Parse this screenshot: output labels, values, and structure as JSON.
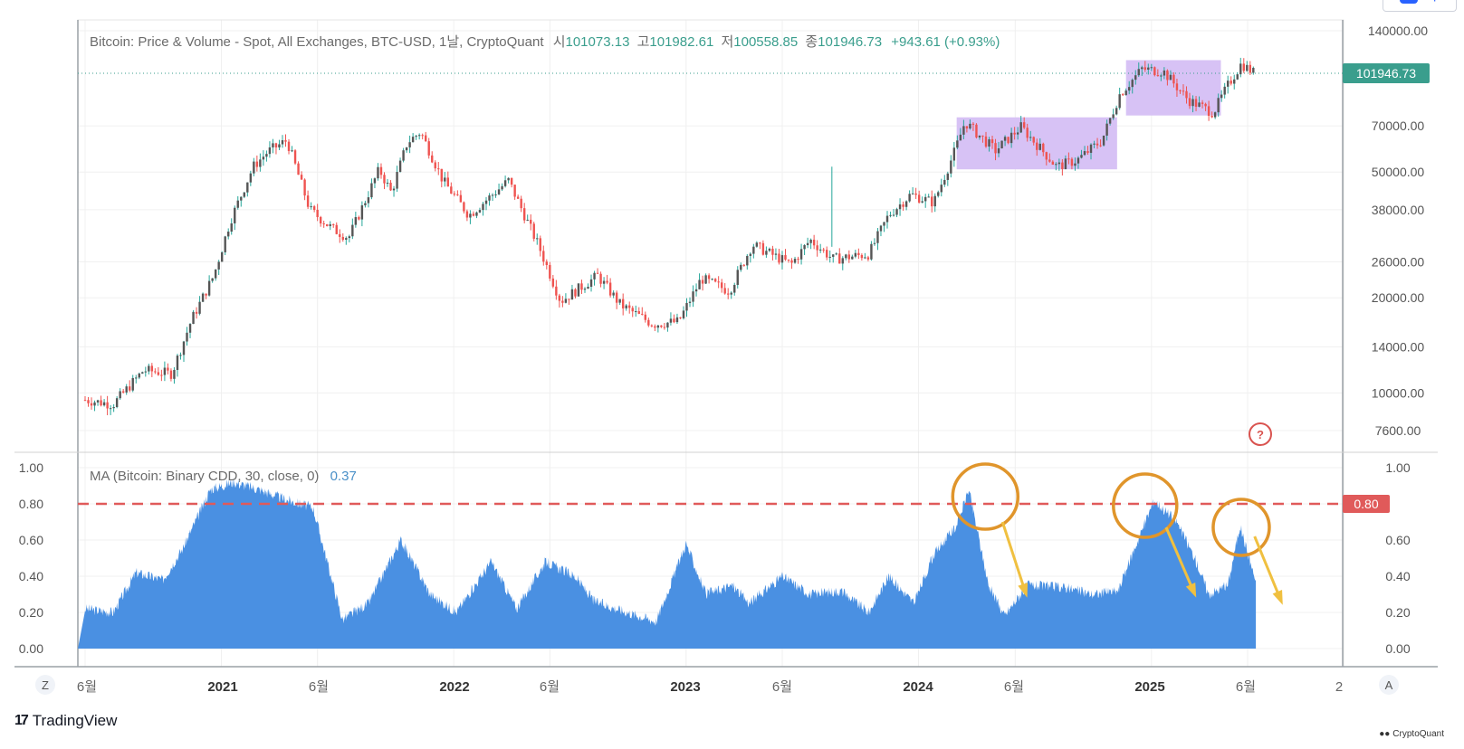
{
  "header": {
    "title": "Bitcoin: Price & Volume - Spot, All Exchanges, BTC-USD, 1날, CryptoQuant",
    "open_label": "시",
    "open_value": "101073.13",
    "high_label": "고",
    "high_value": "101982.61",
    "low_label": "저",
    "low_value": "100558.85",
    "close_label": "종",
    "close_value": "101946.73",
    "change": "+943.61 (+0.93%)"
  },
  "indicator": {
    "title": "MA (Bitcoin: Binary CDD, 30, close, 0)",
    "value": "0.37"
  },
  "price_axis": {
    "ticks": [
      "140000.00",
      "70000.00",
      "50000.00",
      "38000.00",
      "26000.00",
      "20000.00",
      "14000.00",
      "10000.00",
      "7600.00"
    ],
    "last_price_label": "101946.73"
  },
  "cdd_axis": {
    "left_ticks": [
      "1.00",
      "0.80",
      "0.60",
      "0.40",
      "0.20",
      "0.00"
    ],
    "right_ticks": [
      "1.00",
      "0.60",
      "0.40",
      "0.20",
      "0.00"
    ],
    "threshold_label": "0.80"
  },
  "time_axis": {
    "ticks": [
      {
        "label": "6월",
        "bold": false
      },
      {
        "label": "2021",
        "bold": true
      },
      {
        "label": "6월",
        "bold": false
      },
      {
        "label": "2022",
        "bold": true
      },
      {
        "label": "6월",
        "bold": false
      },
      {
        "label": "2023",
        "bold": true
      },
      {
        "label": "6월",
        "bold": false
      },
      {
        "label": "2024",
        "bold": true
      },
      {
        "label": "6월",
        "bold": false
      },
      {
        "label": "2025",
        "bold": true
      },
      {
        "label": "6월",
        "bold": false
      },
      {
        "label": "2",
        "bold": false
      }
    ],
    "left_button": "Z",
    "right_button": "A"
  },
  "help_icon": "?",
  "branding": {
    "tradingview": "TradingView",
    "cryptoquant": "CryptoQuant"
  },
  "colors": {
    "price_up": "#26a69a",
    "price_down": "#ef5350",
    "candle_body": "#555555",
    "cdd_fill": "#4a90e2",
    "threshold": "#e05a5a",
    "box": "#d7c2f5",
    "circle": "#e0952b",
    "arrow": "#f0c040",
    "last_price_bg": "#3a9e8d"
  },
  "chart_data": [
    {
      "type": "line",
      "title": "Bitcoin: Price & Volume - Spot, All Exchanges, BTC-USD, 1날, CryptoQuant",
      "yscale": "log",
      "ylim": [
        6800,
        155000
      ],
      "x": [
        "2020-06-01",
        "2020-07-15",
        "2020-09-01",
        "2020-10-15",
        "2020-11-15",
        "2020-12-20",
        "2021-01-15",
        "2021-02-20",
        "2021-03-15",
        "2021-04-14",
        "2021-05-20",
        "2021-06-25",
        "2021-07-20",
        "2021-09-06",
        "2021-09-25",
        "2021-10-20",
        "2021-11-10",
        "2021-12-15",
        "2022-01-25",
        "2022-03-28",
        "2022-05-15",
        "2022-06-18",
        "2022-08-15",
        "2022-09-20",
        "2022-11-10",
        "2022-12-20",
        "2023-01-25",
        "2023-03-10",
        "2023-04-15",
        "2023-06-15",
        "2023-07-15",
        "2023-08-20",
        "2023-10-15",
        "2023-11-15",
        "2023-12-20",
        "2024-01-25",
        "2024-02-28",
        "2024-03-14",
        "2024-05-01",
        "2024-06-10",
        "2024-08-05",
        "2024-09-06",
        "2024-10-15",
        "2024-11-12",
        "2024-12-17",
        "2025-01-20",
        "2025-02-28",
        "2025-04-08",
        "2025-05-01",
        "2025-05-22",
        "2025-06-14"
      ],
      "y": [
        9500,
        9200,
        11800,
        11500,
        17000,
        23500,
        35000,
        52000,
        58000,
        63000,
        38000,
        33000,
        31000,
        51000,
        43000,
        62000,
        67000,
        47000,
        36500,
        47000,
        29000,
        19500,
        23500,
        19000,
        16500,
        16800,
        23000,
        21000,
        29500,
        25500,
        30500,
        26500,
        27500,
        36500,
        42500,
        40000,
        59000,
        72000,
        58500,
        69500,
        52000,
        54500,
        63000,
        88000,
        106000,
        104000,
        84500,
        77000,
        94000,
        110000,
        102000
      ]
    },
    {
      "type": "area",
      "title": "MA (Bitcoin: Binary CDD, 30, close, 0)",
      "ylim": [
        0,
        1
      ],
      "x": [
        "2020-06-01",
        "2020-07-15",
        "2020-08-20",
        "2020-10-01",
        "2020-11-01",
        "2020-12-15",
        "2021-01-20",
        "2021-03-01",
        "2021-04-15",
        "2021-05-25",
        "2021-07-10",
        "2021-08-20",
        "2021-10-10",
        "2021-11-25",
        "2022-01-05",
        "2022-03-01",
        "2022-04-10",
        "2022-05-25",
        "2022-07-10",
        "2022-08-10",
        "2022-10-01",
        "2022-11-15",
        "2023-01-01",
        "2023-02-01",
        "2023-03-15",
        "2023-04-10",
        "2023-06-01",
        "2023-07-15",
        "2023-09-01",
        "2023-10-15",
        "2023-11-15",
        "2023-12-25",
        "2024-01-25",
        "2024-03-01",
        "2024-03-20",
        "2024-04-20",
        "2024-05-15",
        "2024-06-20",
        "2024-08-15",
        "2024-10-01",
        "2024-11-10",
        "2024-12-05",
        "2025-01-05",
        "2025-02-10",
        "2025-03-10",
        "2025-04-01",
        "2025-05-01",
        "2025-05-20",
        "2025-06-14"
      ],
      "y": [
        0.22,
        0.2,
        0.42,
        0.38,
        0.55,
        0.88,
        0.92,
        0.88,
        0.82,
        0.78,
        0.16,
        0.25,
        0.6,
        0.3,
        0.2,
        0.48,
        0.22,
        0.48,
        0.4,
        0.26,
        0.2,
        0.15,
        0.58,
        0.3,
        0.35,
        0.25,
        0.4,
        0.3,
        0.32,
        0.2,
        0.4,
        0.25,
        0.52,
        0.68,
        0.88,
        0.35,
        0.18,
        0.35,
        0.34,
        0.3,
        0.32,
        0.55,
        0.82,
        0.7,
        0.5,
        0.3,
        0.35,
        0.68,
        0.37
      ],
      "threshold": 0.8
    }
  ]
}
